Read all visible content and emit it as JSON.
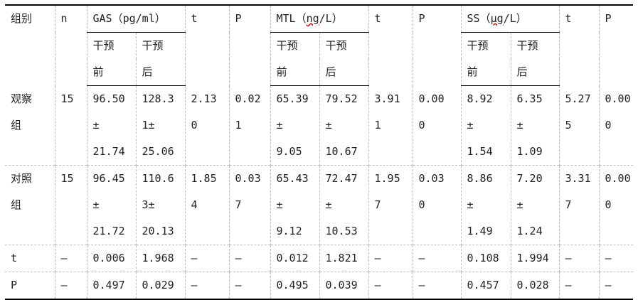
{
  "header": {
    "group": "组别",
    "n": "n",
    "gas": "GAS（pg/ml）",
    "t": "t",
    "p": "P",
    "mtl_prefix": "MTL（",
    "mtl_unit": "ng",
    "mtl_suffix": "/L）",
    "ss_prefix": "SS（",
    "ss_unit": "μg",
    "ss_suffix": "/L）",
    "before": [
      "干预",
      "前"
    ],
    "after": [
      "干预",
      "后"
    ]
  },
  "rows": [
    {
      "group": [
        "观察",
        "组"
      ],
      "n": "15",
      "gas_before": [
        "96.50",
        "±",
        "21.74"
      ],
      "gas_after": [
        "128.3",
        "1±",
        "25.06"
      ],
      "gas_t": [
        "2.13",
        "0"
      ],
      "gas_p": [
        "0.02",
        "1"
      ],
      "mtl_before": [
        "65.39",
        "±",
        "9.05"
      ],
      "mtl_after": [
        "79.52",
        "±",
        "10.67"
      ],
      "mtl_t": [
        "3.91",
        "1"
      ],
      "mtl_p": [
        "0.00",
        "0"
      ],
      "ss_before": [
        "8.92",
        "±",
        "1.54"
      ],
      "ss_after": [
        "6.35",
        "±",
        "1.09"
      ],
      "ss_t": [
        "5.27",
        "5"
      ],
      "ss_p": [
        "0.00",
        "0"
      ]
    },
    {
      "group": [
        "对照",
        "组"
      ],
      "n": "15",
      "gas_before": [
        "96.45",
        "±",
        "21.72"
      ],
      "gas_after": [
        "110.6",
        "3±",
        "20.13"
      ],
      "gas_t": [
        "1.85",
        "4"
      ],
      "gas_p": [
        "0.03",
        "7"
      ],
      "mtl_before": [
        "65.43",
        "±",
        "9.12"
      ],
      "mtl_after": [
        "72.47",
        "±",
        "10.53"
      ],
      "mtl_t": [
        "1.95",
        "7"
      ],
      "mtl_p": [
        "0.03",
        "0"
      ],
      "ss_before": [
        "8.86",
        "±",
        "1.49"
      ],
      "ss_after": [
        "7.20",
        "±",
        "1.24"
      ],
      "ss_t": [
        "3.31",
        "7"
      ],
      "ss_p": [
        "0.00",
        "0"
      ]
    }
  ],
  "stats": [
    {
      "label": "t",
      "n": "–",
      "gas_before": "0.006",
      "gas_after": "1.968",
      "gas_t": "–",
      "gas_p": "–",
      "mtl_before": "0.012",
      "mtl_after": "1.821",
      "mtl_t": "–",
      "mtl_p": "–",
      "ss_before": "0.108",
      "ss_after": "1.994",
      "ss_t": "–",
      "ss_p": "–"
    },
    {
      "label": "P",
      "n": "–",
      "gas_before": "0.497",
      "gas_after": "0.029",
      "gas_t": "–",
      "gas_p": "–",
      "mtl_before": "0.495",
      "mtl_after": "0.039",
      "mtl_t": "–",
      "mtl_p": "–",
      "ss_before": "0.457",
      "ss_after": "0.028",
      "ss_t": "–",
      "ss_p": "–"
    }
  ]
}
